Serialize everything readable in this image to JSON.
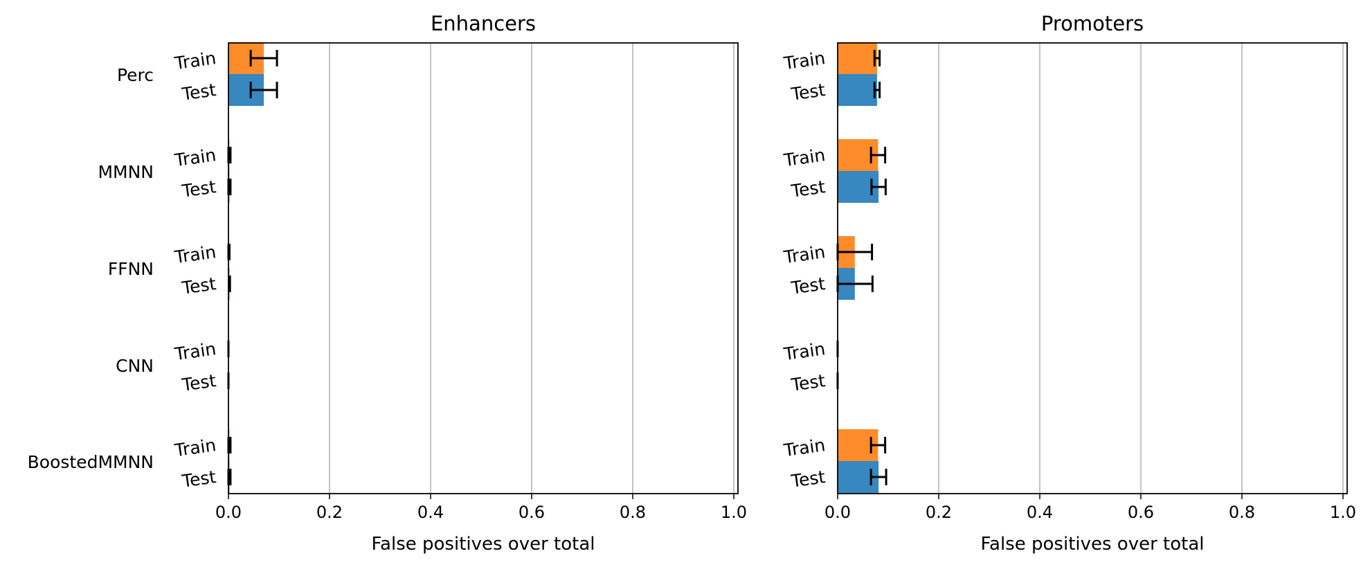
{
  "chart_data": [
    {
      "type": "bar",
      "orientation": "horizontal",
      "title": "Enhancers",
      "xlabel": "False positives over total",
      "xlim": [
        0,
        1.0
      ],
      "xticks": [
        "0.0",
        "0.2",
        "0.4",
        "0.6",
        "0.8",
        "1.0"
      ],
      "grid": "vertical",
      "categories": [
        "Perc",
        "MMNN",
        "FFNN",
        "CNN",
        "BoostedMMNN"
      ],
      "subcategories": [
        "Train",
        "Test"
      ],
      "series": [
        {
          "sub": "Train",
          "color": "#ff8c2a",
          "values": [
            0.07,
            0.002,
            0.001,
            0.0,
            0.002
          ],
          "errors": [
            0.026,
            0.002,
            0.001,
            0.0,
            0.002
          ]
        },
        {
          "sub": "Test",
          "color": "#3787c0",
          "values": [
            0.07,
            0.002,
            0.002,
            0.0,
            0.002
          ],
          "errors": [
            0.026,
            0.002,
            0.001,
            0.0,
            0.002
          ]
        }
      ]
    },
    {
      "type": "bar",
      "orientation": "horizontal",
      "title": "Promoters",
      "xlabel": "False positives over total",
      "xlim": [
        0,
        1.0
      ],
      "xticks": [
        "0.0",
        "0.2",
        "0.4",
        "0.6",
        "0.8",
        "1.0"
      ],
      "grid": "vertical",
      "categories": [
        "Perc",
        "MMNN",
        "FFNN",
        "CNN",
        "BoostedMMNN"
      ],
      "subcategories": [
        "Train",
        "Test"
      ],
      "series": [
        {
          "sub": "Train",
          "color": "#ff8c2a",
          "values": [
            0.078,
            0.08,
            0.034,
            0.0,
            0.08
          ],
          "errors": [
            0.005,
            0.014,
            0.034,
            0.0,
            0.014
          ]
        },
        {
          "sub": "Test",
          "color": "#3787c0",
          "values": [
            0.078,
            0.081,
            0.034,
            0.0,
            0.081
          ],
          "errors": [
            0.005,
            0.014,
            0.035,
            0.0,
            0.015
          ]
        }
      ]
    }
  ]
}
